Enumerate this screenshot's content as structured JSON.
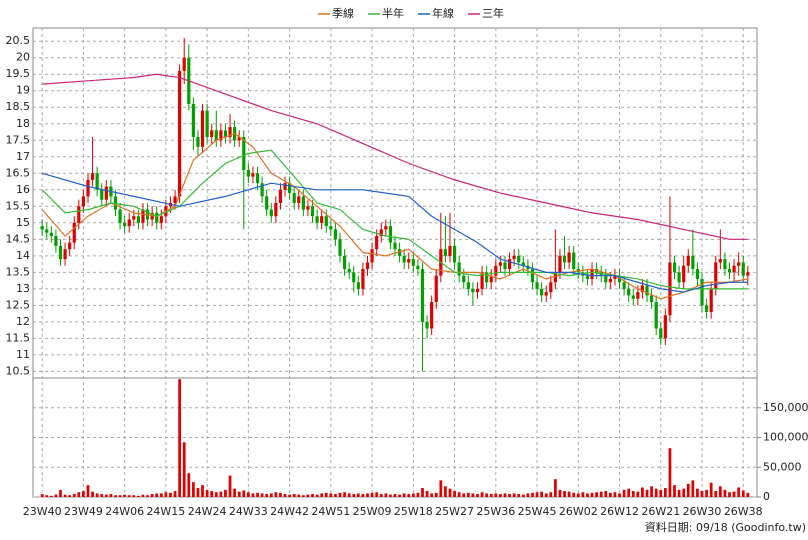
{
  "chart_data": {
    "type": "candlestick",
    "legend": "top",
    "grid": true,
    "xlim": [
      -2,
      156
    ],
    "ylim": [
      10.3,
      20.9
    ],
    "yticks": [
      10.5,
      11,
      11.5,
      12,
      12.5,
      13,
      13.5,
      14,
      14.5,
      15,
      15.5,
      16,
      16.5,
      17,
      17.5,
      18,
      18.5,
      19,
      19.5,
      20,
      20.5
    ],
    "xticks": [
      {
        "value": 0,
        "label": "23W40"
      },
      {
        "value": 9,
        "label": "23W49"
      },
      {
        "value": 18,
        "label": "24W06"
      },
      {
        "value": 27,
        "label": "24W15"
      },
      {
        "value": 36,
        "label": "24W24"
      },
      {
        "value": 45,
        "label": "24W33"
      },
      {
        "value": 54,
        "label": "24W42"
      },
      {
        "value": 63,
        "label": "24W51"
      },
      {
        "value": 72,
        "label": "25W09"
      },
      {
        "value": 81,
        "label": "25W18"
      },
      {
        "value": 90,
        "label": "25W27"
      },
      {
        "value": 99,
        "label": "25W36"
      },
      {
        "value": 108,
        "label": "25W45"
      },
      {
        "value": 117,
        "label": "26W02"
      },
      {
        "value": 126,
        "label": "26W12"
      },
      {
        "value": 135,
        "label": "26W21"
      },
      {
        "value": 144,
        "label": "26W30"
      },
      {
        "value": 153,
        "label": "26W38"
      }
    ],
    "candles": {
      "up_color": "#e00000",
      "down_color": "#00a000",
      "open": [
        14.9,
        14.8,
        14.7,
        14.6,
        14.3,
        13.9,
        14.2,
        14.4,
        15.0,
        15.5,
        15.8,
        16.3,
        16.5,
        16.0,
        15.7,
        16.1,
        15.8,
        15.4,
        15.0,
        14.9,
        15.1,
        15.2,
        15.0,
        15.4,
        15.1,
        15.3,
        15.0,
        15.2,
        15.5,
        15.6,
        15.8,
        19.6,
        20.0,
        18.6,
        17.6,
        17.3,
        18.4,
        17.6,
        17.8,
        17.5,
        17.8,
        17.6,
        17.9,
        17.5,
        17.6,
        16.6,
        16.4,
        16.5,
        16.2,
        15.8,
        15.4,
        15.2,
        15.6,
        16.0,
        16.2,
        15.9,
        15.6,
        15.8,
        15.4,
        15.5,
        15.2,
        15.0,
        15.2,
        14.9,
        14.8,
        14.5,
        14.0,
        13.6,
        13.5,
        13.2,
        13.0,
        13.6,
        13.8,
        14.2,
        14.6,
        14.8,
        14.9,
        14.4,
        14.2,
        14.0,
        13.8,
        13.9,
        13.7,
        13.6,
        12.0,
        11.8,
        12.6,
        13.4,
        14.2,
        14.0,
        14.3,
        13.8,
        13.4,
        13.2,
        13.0,
        12.9,
        13.0,
        13.5,
        13.2,
        13.4,
        13.7,
        13.8,
        13.6,
        13.9,
        14.0,
        13.8,
        13.7,
        13.6,
        13.2,
        13.0,
        12.8,
        12.9,
        13.2,
        13.5,
        14.0,
        13.8,
        14.1,
        13.6,
        13.5,
        13.4,
        13.3,
        13.6,
        13.5,
        13.4,
        13.2,
        13.3,
        13.4,
        13.2,
        13.0,
        12.8,
        12.7,
        12.9,
        13.1,
        12.8,
        12.6,
        11.8,
        11.5,
        12.2,
        13.8,
        13.5,
        13.2,
        13.7,
        14.0,
        13.6,
        13.3,
        12.5,
        12.3,
        13.0,
        13.8,
        13.9,
        13.6,
        13.5,
        13.7,
        13.8,
        13.4
      ],
      "high": [
        15.1,
        15.0,
        14.9,
        14.8,
        14.5,
        14.4,
        14.6,
        15.2,
        15.7,
        16.0,
        16.5,
        17.6,
        16.7,
        16.2,
        16.3,
        16.3,
        16.0,
        15.6,
        15.2,
        15.3,
        15.4,
        15.4,
        15.6,
        15.6,
        15.5,
        15.5,
        15.4,
        15.7,
        15.8,
        16.0,
        19.8,
        20.6,
        20.4,
        18.8,
        17.8,
        18.6,
        18.6,
        18.0,
        18.4,
        18.0,
        18.0,
        18.3,
        18.1,
        17.8,
        17.8,
        16.8,
        16.7,
        16.7,
        16.4,
        16.0,
        15.6,
        15.8,
        16.2,
        16.4,
        16.4,
        16.1,
        16.0,
        16.0,
        15.7,
        15.7,
        15.4,
        15.4,
        15.4,
        15.1,
        15.0,
        14.7,
        14.2,
        13.8,
        13.7,
        13.4,
        13.8,
        14.0,
        14.4,
        14.8,
        15.0,
        15.1,
        15.1,
        14.6,
        14.4,
        14.2,
        14.1,
        14.1,
        13.9,
        13.8,
        12.2,
        12.8,
        13.6,
        15.3,
        15.2,
        15.3,
        14.5,
        14.0,
        13.6,
        13.4,
        13.2,
        13.2,
        13.7,
        13.7,
        13.6,
        13.9,
        14.0,
        14.0,
        14.1,
        14.2,
        14.2,
        14.0,
        13.9,
        13.8,
        13.4,
        13.2,
        13.1,
        13.4,
        14.8,
        14.2,
        14.6,
        14.3,
        14.3,
        13.8,
        13.7,
        13.6,
        13.8,
        13.8,
        13.7,
        13.6,
        13.5,
        13.6,
        13.6,
        13.4,
        13.2,
        13.0,
        13.1,
        13.3,
        13.3,
        13.0,
        12.8,
        12.0,
        12.4,
        15.8,
        14.0,
        13.7,
        14.0,
        14.2,
        14.8,
        13.8,
        13.5,
        12.7,
        13.2,
        14.0,
        14.8,
        14.1,
        13.8,
        13.9,
        14.1,
        14.0,
        13.7
      ],
      "low": [
        14.6,
        14.5,
        14.4,
        14.1,
        13.7,
        13.7,
        14.0,
        14.2,
        14.8,
        15.3,
        15.6,
        16.1,
        15.8,
        15.5,
        15.5,
        15.6,
        15.2,
        14.8,
        14.7,
        14.7,
        14.9,
        14.8,
        14.8,
        14.9,
        14.9,
        14.8,
        14.8,
        15.0,
        15.3,
        15.4,
        15.6,
        19.2,
        18.4,
        17.2,
        17.0,
        17.1,
        17.4,
        17.4,
        17.3,
        17.3,
        17.4,
        17.4,
        17.3,
        17.3,
        14.8,
        16.2,
        16.2,
        16.0,
        15.6,
        15.2,
        15.0,
        15.0,
        15.4,
        15.8,
        15.7,
        15.4,
        15.4,
        15.2,
        15.2,
        15.0,
        14.8,
        14.8,
        14.7,
        14.6,
        14.3,
        13.8,
        13.4,
        13.3,
        12.9,
        12.8,
        12.8,
        13.4,
        13.6,
        14.0,
        14.4,
        14.6,
        14.2,
        14.0,
        13.8,
        13.6,
        13.6,
        13.5,
        13.4,
        10.5,
        11.5,
        11.6,
        12.4,
        13.2,
        13.8,
        13.8,
        13.6,
        13.2,
        13.0,
        12.8,
        12.5,
        12.7,
        12.8,
        13.0,
        13.0,
        13.2,
        13.5,
        13.4,
        13.4,
        13.7,
        13.6,
        13.5,
        13.4,
        13.0,
        12.8,
        12.6,
        12.6,
        12.7,
        13.0,
        13.3,
        13.6,
        13.6,
        13.4,
        13.3,
        13.2,
        13.1,
        13.1,
        13.3,
        13.2,
        13.0,
        13.0,
        13.1,
        13.0,
        12.8,
        12.6,
        12.5,
        12.5,
        12.7,
        12.6,
        12.4,
        11.6,
        11.3,
        11.3,
        12.0,
        13.3,
        13.0,
        13.0,
        13.5,
        13.4,
        13.1,
        12.3,
        12.1,
        12.1,
        12.8,
        13.6,
        13.4,
        13.3,
        13.2,
        13.4,
        13.2,
        13.1
      ],
      "close": [
        14.8,
        14.7,
        14.6,
        14.3,
        13.9,
        14.2,
        14.4,
        15.0,
        15.5,
        15.8,
        16.3,
        16.5,
        16.0,
        15.7,
        16.1,
        15.8,
        15.4,
        15.0,
        14.9,
        15.1,
        15.2,
        15.0,
        15.4,
        15.1,
        15.3,
        15.0,
        15.2,
        15.5,
        15.6,
        15.8,
        19.6,
        20.0,
        18.6,
        17.6,
        17.3,
        18.4,
        17.6,
        17.8,
        17.5,
        17.8,
        17.6,
        17.9,
        17.5,
        17.6,
        16.6,
        16.4,
        16.5,
        16.2,
        15.8,
        15.4,
        15.2,
        15.6,
        16.0,
        16.2,
        15.9,
        15.6,
        15.8,
        15.4,
        15.5,
        15.2,
        15.0,
        15.2,
        14.9,
        14.8,
        14.5,
        14.0,
        13.6,
        13.5,
        13.2,
        13.0,
        13.6,
        13.8,
        14.2,
        14.6,
        14.8,
        14.9,
        14.4,
        14.2,
        14.0,
        13.8,
        13.9,
        13.7,
        13.6,
        12.0,
        11.8,
        12.6,
        13.4,
        14.2,
        14.0,
        14.3,
        13.8,
        13.4,
        13.2,
        13.0,
        12.9,
        13.0,
        13.5,
        13.2,
        13.4,
        13.7,
        13.8,
        13.6,
        13.9,
        14.0,
        13.8,
        13.7,
        13.6,
        13.2,
        13.0,
        12.8,
        12.9,
        13.2,
        13.5,
        14.0,
        13.8,
        14.1,
        13.6,
        13.5,
        13.4,
        13.3,
        13.6,
        13.5,
        13.4,
        13.2,
        13.3,
        13.4,
        13.2,
        13.0,
        12.8,
        12.7,
        12.9,
        13.1,
        12.8,
        12.6,
        11.8,
        11.5,
        12.2,
        13.8,
        13.5,
        13.2,
        13.7,
        14.0,
        13.6,
        13.3,
        12.5,
        12.3,
        13.0,
        13.8,
        13.9,
        13.6,
        13.5,
        13.7,
        13.8,
        13.4,
        13.5
      ]
    },
    "series": [
      {
        "name": "季線",
        "color": "#e07020",
        "x": [
          0,
          5,
          10,
          15,
          20,
          25,
          29,
          33,
          38,
          42,
          46,
          50,
          55,
          60,
          65,
          70,
          75,
          80,
          85,
          90,
          95,
          100,
          105,
          110,
          115,
          120,
          125,
          130,
          135,
          140,
          145,
          150,
          154
        ],
        "values": [
          15.4,
          14.6,
          15.2,
          15.6,
          15.3,
          15.2,
          15.5,
          16.9,
          17.5,
          17.7,
          17.3,
          16.5,
          16.1,
          15.5,
          14.9,
          14.1,
          14.0,
          14.2,
          13.6,
          13.5,
          13.5,
          13.3,
          13.6,
          13.3,
          13.5,
          13.6,
          13.4,
          13.0,
          12.7,
          12.9,
          13.2,
          13.2,
          13.3
        ]
      },
      {
        "name": "半年",
        "color": "#33bb33",
        "x": [
          0,
          5,
          10,
          15,
          20,
          25,
          30,
          35,
          40,
          45,
          50,
          55,
          60,
          65,
          70,
          75,
          80,
          85,
          90,
          95,
          100,
          105,
          110,
          115,
          120,
          125,
          130,
          135,
          140,
          145,
          150,
          154
        ],
        "values": [
          16.0,
          15.3,
          15.4,
          15.6,
          15.5,
          15.2,
          15.5,
          16.2,
          16.8,
          17.1,
          17.2,
          16.4,
          15.6,
          15.4,
          14.8,
          14.6,
          14.5,
          14.0,
          13.5,
          13.4,
          13.5,
          13.5,
          13.5,
          13.4,
          13.5,
          13.4,
          13.3,
          13.1,
          13.0,
          13.0,
          13.0,
          13.0
        ]
      },
      {
        "name": "年線",
        "color": "#1f5fd0",
        "x": [
          0,
          10,
          20,
          30,
          40,
          50,
          60,
          70,
          80,
          85,
          90,
          95,
          100,
          105,
          110,
          115,
          120,
          125,
          130,
          135,
          140,
          145,
          150,
          154
        ],
        "values": [
          16.5,
          16.1,
          15.8,
          15.5,
          15.8,
          16.2,
          16.0,
          16.0,
          15.8,
          15.2,
          14.8,
          14.4,
          13.9,
          13.7,
          13.5,
          13.5,
          13.4,
          13.4,
          13.2,
          13.0,
          12.9,
          13.1,
          13.2,
          13.2
        ]
      },
      {
        "name": "三年",
        "color": "#cc2277",
        "x": [
          0,
          10,
          20,
          25,
          30,
          40,
          50,
          60,
          70,
          80,
          90,
          100,
          110,
          120,
          130,
          140,
          150,
          154
        ],
        "values": [
          19.2,
          19.3,
          19.4,
          19.5,
          19.4,
          18.9,
          18.4,
          18.0,
          17.4,
          16.8,
          16.3,
          15.9,
          15.6,
          15.3,
          15.1,
          14.8,
          14.5,
          14.5
        ]
      }
    ],
    "volume": {
      "color": "#e00000",
      "ylim": [
        0,
        200000
      ],
      "yticks": [
        0,
        {
          "value": 50000,
          "label": "50,000"
        },
        {
          "value": 100000,
          "label": "100,000"
        },
        {
          "value": 150000,
          "label": "150,000"
        }
      ],
      "values": [
        5000,
        3000,
        2000,
        4000,
        12000,
        4000,
        3000,
        5000,
        8000,
        10000,
        20000,
        9000,
        6000,
        5000,
        4000,
        5000,
        3000,
        3000,
        4000,
        3000,
        3000,
        2000,
        4000,
        3000,
        5000,
        6000,
        6000,
        8000,
        7000,
        10000,
        198000,
        92000,
        40000,
        25000,
        15000,
        20000,
        12000,
        10000,
        8000,
        9000,
        12000,
        36000,
        14000,
        9000,
        11000,
        8000,
        6000,
        7000,
        6000,
        5000,
        6000,
        8000,
        7000,
        5000,
        4000,
        5000,
        4000,
        3000,
        4000,
        5000,
        4000,
        6000,
        7000,
        6000,
        5000,
        7000,
        8000,
        6000,
        5000,
        6000,
        5000,
        6000,
        7000,
        8000,
        5000,
        6000,
        4000,
        5000,
        4000,
        6000,
        5000,
        6000,
        7000,
        15000,
        10000,
        6000,
        7000,
        28000,
        18000,
        14000,
        10000,
        8000,
        6000,
        7000,
        6000,
        5000,
        8000,
        6000,
        5000,
        6000,
        5000,
        6000,
        5000,
        6000,
        5000,
        4000,
        6000,
        7000,
        8000,
        9000,
        6000,
        8000,
        30000,
        12000,
        10000,
        9000,
        7000,
        6000,
        8000,
        6000,
        7000,
        8000,
        9000,
        10000,
        7000,
        8000,
        6000,
        12000,
        14000,
        10000,
        9000,
        16000,
        12000,
        18000,
        14000,
        12000,
        15000,
        82000,
        20000,
        12000,
        14000,
        22000,
        28000,
        14000,
        10000,
        12000,
        24000,
        10000,
        18000,
        12000,
        8000,
        9000,
        16000,
        11000,
        7000
      ]
    },
    "source": "資料日期: 09/18  (Goodinfo.tw)"
  }
}
